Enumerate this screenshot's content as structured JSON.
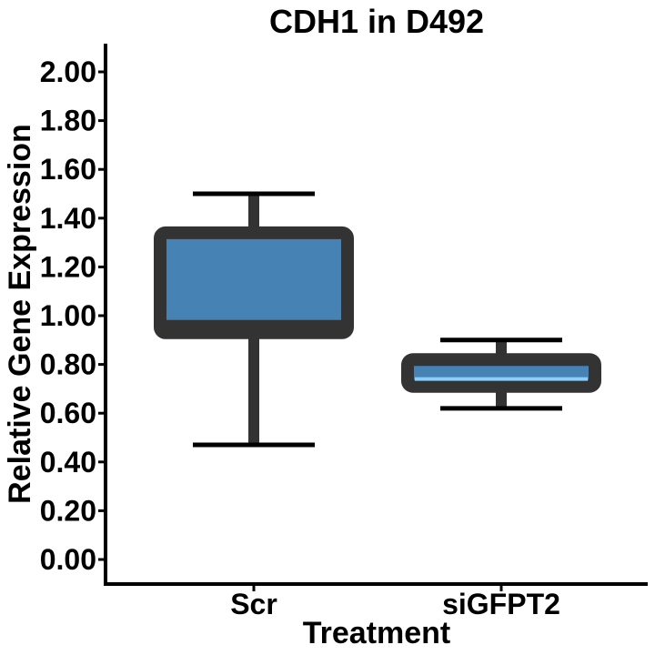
{
  "chart_data": {
    "type": "box",
    "title": "CDH1 in D492",
    "xlabel": "Treatment",
    "ylabel": "Relative Gene Expression",
    "ylim": [
      0,
      2.0
    ],
    "y_ticks": [
      "0.00",
      "0.20",
      "0.40",
      "0.60",
      "0.80",
      "1.00",
      "1.20",
      "1.40",
      "1.60",
      "1.80",
      "2.00"
    ],
    "categories": [
      "Scr",
      "siGFPT2"
    ],
    "boxes": [
      {
        "category": "Scr",
        "whisker_low": 0.47,
        "q1": 0.93,
        "median": 0.96,
        "q3": 1.34,
        "whisker_high": 1.5,
        "fill": "#4682B4",
        "median_color": "#333333"
      },
      {
        "category": "siGFPT2",
        "whisker_low": 0.62,
        "q1": 0.71,
        "median": 0.74,
        "q3": 0.82,
        "whisker_high": 0.9,
        "fill": "#4682B4",
        "median_color": "#87CEFA"
      }
    ],
    "outline_color": "#333333",
    "grid": false,
    "legend": "none"
  }
}
